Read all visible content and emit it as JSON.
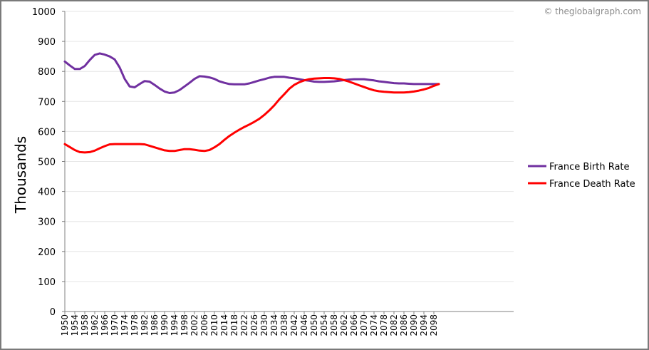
{
  "credit": "© theglobalgraph.com",
  "chart_data": {
    "type": "line",
    "title": "",
    "xlabel": "",
    "ylabel": "Thousands",
    "ylim": [
      0,
      1000
    ],
    "yticks": [
      0,
      100,
      200,
      300,
      400,
      500,
      600,
      700,
      800,
      900,
      1000
    ],
    "xlim": [
      1950,
      2130
    ],
    "xticks": [
      1950,
      1954,
      1958,
      1962,
      1966,
      1970,
      1974,
      1978,
      1982,
      1986,
      1990,
      1994,
      1998,
      2002,
      2006,
      2010,
      2014,
      2018,
      2022,
      2026,
      2030,
      2034,
      2038,
      2042,
      2046,
      2050,
      2054,
      2058,
      2062,
      2066,
      2070,
      2074,
      2078,
      2082,
      2086,
      2090,
      2094,
      2098
    ],
    "grid": "horizontal",
    "legend": "right",
    "series": [
      {
        "name": "France Birth Rate",
        "color": "#7030a0",
        "x": [
          1950,
          1952,
          1954,
          1956,
          1958,
          1960,
          1962,
          1964,
          1966,
          1968,
          1970,
          1972,
          1974,
          1976,
          1978,
          1980,
          1982,
          1984,
          1986,
          1988,
          1990,
          1992,
          1994,
          1996,
          1998,
          2000,
          2002,
          2004,
          2006,
          2008,
          2010,
          2012,
          2014,
          2016,
          2018,
          2020,
          2022,
          2024,
          2026,
          2028,
          2030,
          2032,
          2034,
          2036,
          2038,
          2040,
          2042,
          2044,
          2046,
          2048,
          2050,
          2052,
          2054,
          2056,
          2058,
          2060,
          2062,
          2064,
          2066,
          2068,
          2070,
          2072,
          2074,
          2076,
          2078,
          2080,
          2082,
          2084,
          2086,
          2088,
          2090,
          2092,
          2094,
          2096,
          2098,
          2100
        ],
        "values": [
          833,
          820,
          808,
          808,
          818,
          838,
          855,
          860,
          856,
          850,
          840,
          813,
          775,
          750,
          747,
          758,
          768,
          766,
          755,
          743,
          733,
          728,
          730,
          738,
          750,
          762,
          775,
          784,
          783,
          780,
          775,
          767,
          762,
          758,
          757,
          757,
          757,
          760,
          765,
          770,
          774,
          779,
          782,
          782,
          782,
          779,
          777,
          774,
          771,
          769,
          766,
          765,
          765,
          766,
          767,
          769,
          771,
          773,
          774,
          774,
          774,
          772,
          770,
          767,
          765,
          763,
          761,
          760,
          760,
          759,
          758,
          758,
          758,
          758,
          758,
          758
        ]
      },
      {
        "name": "France Death Rate",
        "color": "#ff0000",
        "x": [
          1950,
          1952,
          1954,
          1956,
          1958,
          1960,
          1962,
          1964,
          1966,
          1968,
          1970,
          1972,
          1974,
          1976,
          1978,
          1980,
          1982,
          1984,
          1986,
          1988,
          1990,
          1992,
          1994,
          1996,
          1998,
          2000,
          2002,
          2004,
          2006,
          2008,
          2010,
          2012,
          2014,
          2016,
          2018,
          2020,
          2022,
          2024,
          2026,
          2028,
          2030,
          2032,
          2034,
          2036,
          2038,
          2040,
          2042,
          2044,
          2046,
          2048,
          2050,
          2052,
          2054,
          2056,
          2058,
          2060,
          2062,
          2064,
          2066,
          2068,
          2070,
          2072,
          2074,
          2076,
          2078,
          2080,
          2082,
          2084,
          2086,
          2088,
          2090,
          2092,
          2094,
          2096,
          2098,
          2100
        ],
        "values": [
          558,
          548,
          538,
          531,
          530,
          531,
          536,
          544,
          551,
          557,
          558,
          558,
          558,
          558,
          558,
          558,
          557,
          552,
          547,
          542,
          537,
          535,
          535,
          538,
          541,
          541,
          539,
          536,
          535,
          538,
          547,
          558,
          572,
          585,
          596,
          606,
          615,
          623,
          632,
          642,
          655,
          670,
          687,
          707,
          724,
          742,
          755,
          764,
          770,
          774,
          776,
          777,
          778,
          778,
          777,
          775,
          771,
          766,
          760,
          754,
          748,
          742,
          737,
          734,
          732,
          731,
          730,
          730,
          730,
          731,
          733,
          736,
          740,
          745,
          752,
          758
        ]
      }
    ]
  }
}
